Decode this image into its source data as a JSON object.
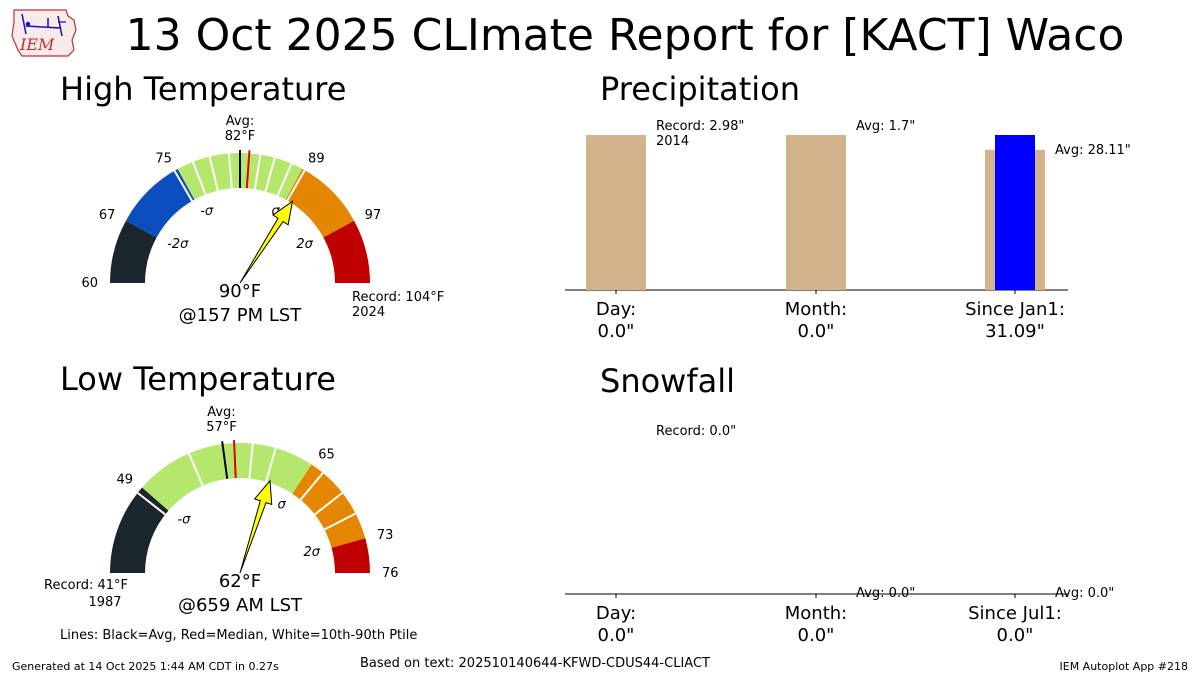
{
  "page": {
    "title": "13 Oct 2025 CLImate Report for [KACT] Waco",
    "logo_text": "IEM",
    "footer_left": "Generated at 14 Oct 2025 1:44 AM CDT in 0.27s",
    "footer_center": "Based on text: 202510140644-KFWD-CDUS44-CLIACT",
    "footer_right": "IEM Autoplot App #218",
    "lines_note": "Lines: Black=Avg, Red=Median, White=10th-90th Ptile"
  },
  "colors": {
    "dark": "#1b262c",
    "blue": "#0c4ec0",
    "green": "#b5e76d",
    "orange": "#e48600",
    "red": "#c00000",
    "tan": "#d2b48c",
    "obs_bar": "#0000ff",
    "needle": "#ffff00"
  },
  "chart_data": [
    {
      "type": "gauge",
      "title": "High Temperature",
      "range": [
        60,
        104
      ],
      "bands": [
        {
          "from": 60,
          "to": 67,
          "color": "dark"
        },
        {
          "from": 67,
          "to": 75,
          "color": "blue"
        },
        {
          "from": 75,
          "to": 89,
          "color": "green"
        },
        {
          "from": 89,
          "to": 97,
          "color": "orange"
        },
        {
          "from": 97,
          "to": 104,
          "color": "red"
        }
      ],
      "ticks": [
        {
          "value": 60,
          "label": "60"
        },
        {
          "value": 67,
          "label": "67"
        },
        {
          "value": 75,
          "label": "75"
        },
        {
          "value": 89,
          "label": "89"
        },
        {
          "value": 97,
          "label": "97"
        }
      ],
      "sigma_labels": [
        {
          "value": 67,
          "label": "-2σ"
        },
        {
          "value": 75,
          "label": "-σ"
        },
        {
          "value": 89,
          "label": "σ"
        },
        {
          "value": 97,
          "label": "2σ"
        }
      ],
      "avg": 82,
      "avg_label": "Avg:",
      "avg_value_label": "82$^\\circ$F",
      "median": 83,
      "percentile_lines": [
        74.6,
        76.8,
        78.7,
        80.8,
        84.2,
        85.8,
        87.7,
        89.3
      ],
      "observed": 90,
      "observed_label": "90$^\\circ$F",
      "time_label": "@157 PM LST",
      "record_label": "Record: 104$^\\circ$F",
      "record_year": "2024"
    },
    {
      "type": "gauge",
      "title": "Low Temperature",
      "range": [
        41,
        76
      ],
      "bands": [
        {
          "from": 41,
          "to": 49,
          "color": "dark"
        },
        {
          "from": 49,
          "to": 65,
          "color": "green"
        },
        {
          "from": 65,
          "to": 73,
          "color": "orange"
        },
        {
          "from": 73,
          "to": 76,
          "color": "red"
        }
      ],
      "ticks": [
        {
          "value": 49,
          "label": "49"
        },
        {
          "value": 65,
          "label": "65"
        },
        {
          "value": 73,
          "label": "73"
        },
        {
          "value": 76,
          "label": "76"
        }
      ],
      "sigma_labels": [
        {
          "value": 49,
          "label": "-σ"
        },
        {
          "value": 65,
          "label": "σ"
        },
        {
          "value": 73,
          "label": "2σ"
        }
      ],
      "avg": 57,
      "avg_label": "Avg:",
      "avg_value_label": "57$^\\circ$F",
      "median": 58,
      "percentile_lines": [
        48.4,
        54.0,
        59.6,
        61.6,
        66.2,
        68.6,
        70.7
      ],
      "observed": 62,
      "observed_label": "62$^\\circ$F",
      "time_label": "@659 AM LST",
      "record_label": "Record: 41$^\\circ$F",
      "record_year": "1987"
    },
    {
      "type": "bar",
      "title": "Precipitation",
      "ymax": 2.98,
      "categories": [
        {
          "label": "Day:",
          "value_label": "0.0\"",
          "scale": 2.98,
          "bg": 2.98,
          "obs": 0.0,
          "annotations": [
            "Record: 2.98\"",
            "2014"
          ]
        },
        {
          "label": "Month:",
          "value_label": "0.0\"",
          "scale": 2.98,
          "bg": 2.98,
          "obs": 0.0,
          "annotations": [
            "Avg: 1.7\""
          ]
        },
        {
          "label": "Since Jan1:",
          "value_label": "31.09\"",
          "scale": 31.09,
          "bg": 28.11,
          "obs": 31.09,
          "annotations": [
            "Avg: 28.11\""
          ]
        }
      ]
    },
    {
      "type": "bar",
      "title": "Snowfall",
      "categories": [
        {
          "label": "Day:",
          "value_label": "0.0\"",
          "scale": 1,
          "bg": 0,
          "obs": 0,
          "annotations": [
            "Record: 0.0\""
          ]
        },
        {
          "label": "Month:",
          "value_label": "0.0\"",
          "scale": 1,
          "bg": 0,
          "obs": 0,
          "annotations": [
            "Avg: 0.0\""
          ]
        },
        {
          "label": "Since Jul1:",
          "value_label": "0.0\"",
          "scale": 1,
          "bg": 0,
          "obs": 0,
          "annotations": [
            "Avg: 0.0\""
          ]
        }
      ]
    }
  ]
}
